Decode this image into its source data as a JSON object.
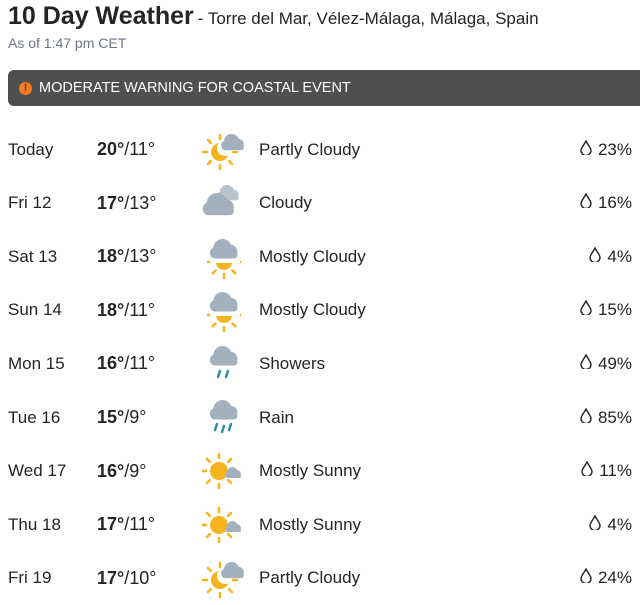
{
  "header": {
    "title": "10 Day Weather",
    "location": "- Torre del Mar, Vélez-Málaga, Málaga, Spain",
    "as_of": "As of 1:47 pm CET"
  },
  "alert": {
    "icon": "exclamation-icon",
    "text": "MODERATE WARNING FOR COASTAL EVENT",
    "color": "#f57c1f"
  },
  "days": [
    {
      "day": "Today",
      "high": "20°",
      "low": "/11°",
      "icon": "partly-cloudy-night",
      "condition": "Partly Cloudy",
      "precip": "23%"
    },
    {
      "day": "Fri 12",
      "high": "17°",
      "low": "/13°",
      "icon": "cloudy",
      "condition": "Cloudy",
      "precip": "16%"
    },
    {
      "day": "Sat 13",
      "high": "18°",
      "low": "/13°",
      "icon": "mostly-cloudy",
      "condition": "Mostly Cloudy",
      "precip": "4%"
    },
    {
      "day": "Sun 14",
      "high": "18°",
      "low": "/11°",
      "icon": "mostly-cloudy",
      "condition": "Mostly Cloudy",
      "precip": "15%"
    },
    {
      "day": "Mon 15",
      "high": "16°",
      "low": "/11°",
      "icon": "showers",
      "condition": "Showers",
      "precip": "49%"
    },
    {
      "day": "Tue 16",
      "high": "15°",
      "low": "/9°",
      "icon": "rain",
      "condition": "Rain",
      "precip": "85%"
    },
    {
      "day": "Wed 17",
      "high": "16°",
      "low": "/9°",
      "icon": "mostly-sunny",
      "condition": "Mostly Sunny",
      "precip": "11%"
    },
    {
      "day": "Thu 18",
      "high": "17°",
      "low": "/11°",
      "icon": "mostly-sunny",
      "condition": "Mostly Sunny",
      "precip": "4%"
    },
    {
      "day": "Fri 19",
      "high": "17°",
      "low": "/10°",
      "icon": "partly-cloudy-night",
      "condition": "Partly Cloudy",
      "precip": "24%"
    }
  ]
}
